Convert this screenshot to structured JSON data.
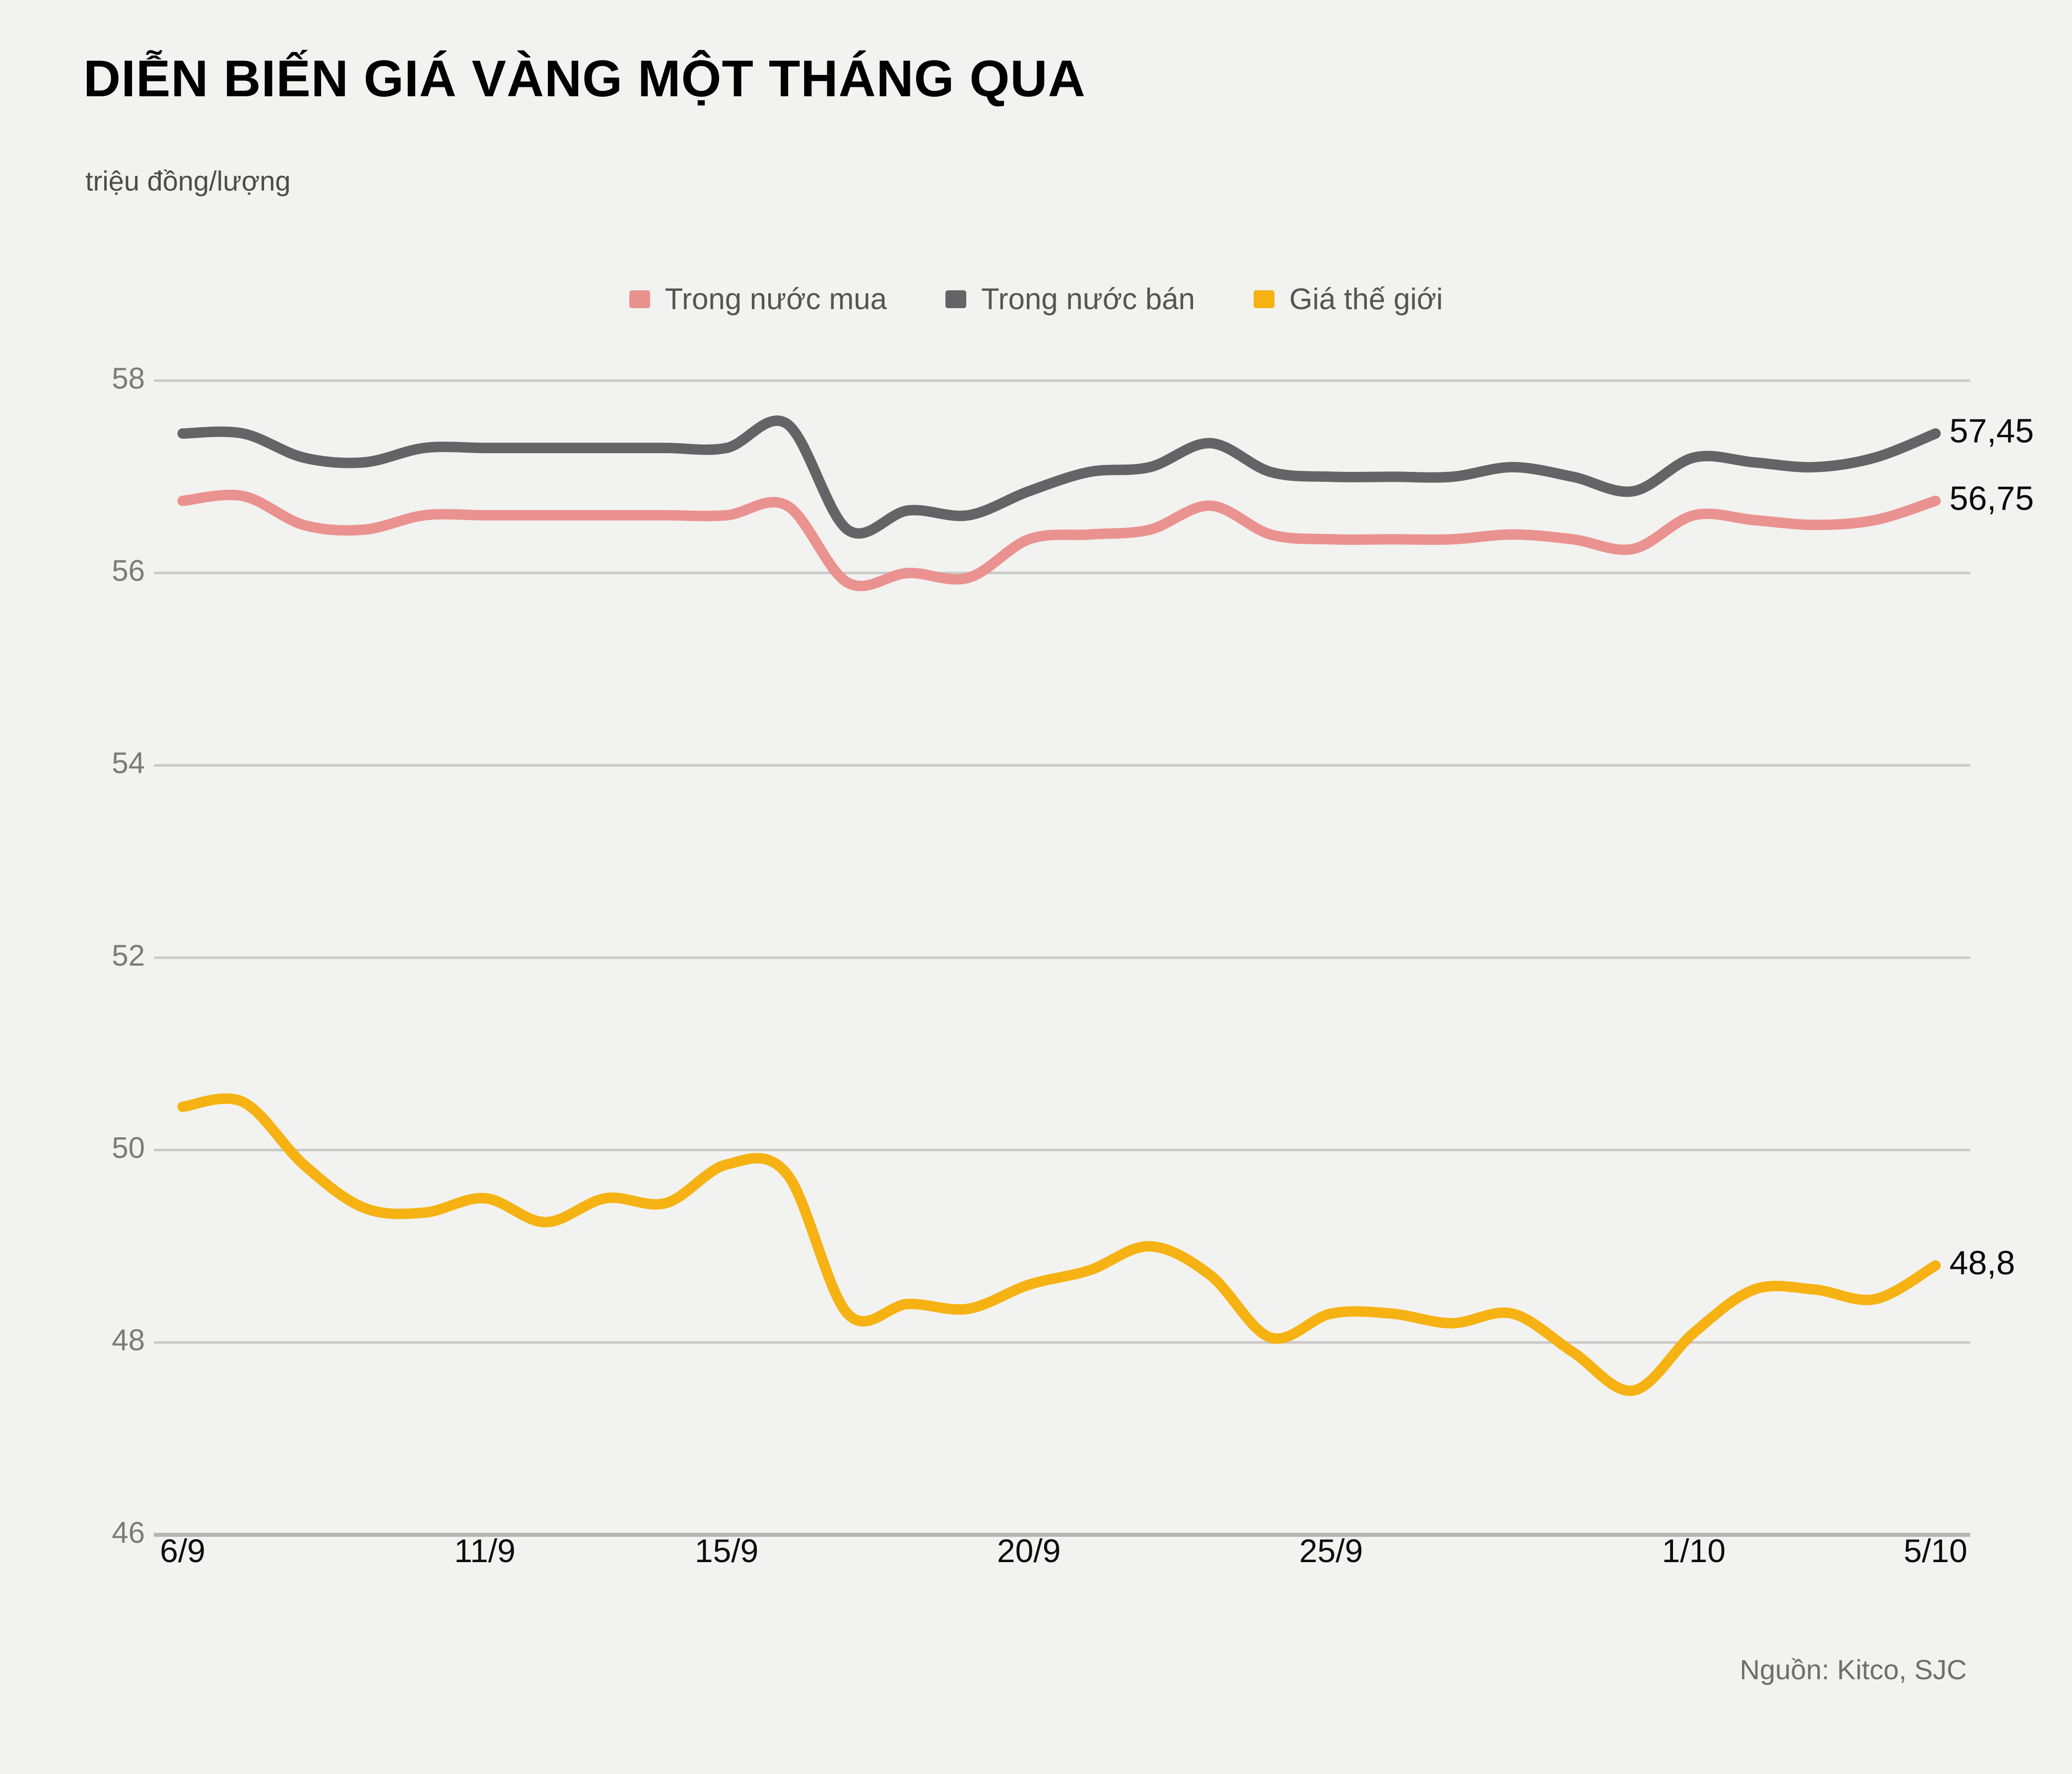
{
  "header": {
    "title": "DIỄN BIẾN GIÁ VÀNG MỘT THÁNG QUA",
    "subtitle": "triệu đồng/lượng"
  },
  "source": "Nguồn: Kitco, SJC",
  "colors": {
    "background": "#f2f2f0",
    "grid": "#cac9c7",
    "grid_bottom": "#b5b4b2",
    "y_tick_text": "#7b7b7b",
    "x_tick_text": "#0d0d0d",
    "end_label_text": "#0a0a0a"
  },
  "chart_data": {
    "type": "line",
    "title": "DIỄN BIẾN GIÁ VÀNG MỘT THÁNG QUA",
    "ylabel": "triệu đồng/lượng",
    "ylim": [
      46,
      58
    ],
    "yticks": [
      46,
      48,
      50,
      52,
      54,
      56,
      58
    ],
    "grid": "horizontal",
    "legend_position": "top-center",
    "x": [
      "6/9",
      "7/9",
      "8/9",
      "9/9",
      "10/9",
      "11/9",
      "12/9",
      "13/9",
      "14/9",
      "15/9",
      "16/9",
      "17/9",
      "18/9",
      "19/9",
      "20/9",
      "21/9",
      "22/9",
      "23/9",
      "24/9",
      "25/9",
      "26/9",
      "27/9",
      "28/9",
      "29/9",
      "30/9",
      "1/10",
      "2/10",
      "3/10",
      "4/10",
      "5/10"
    ],
    "xtick_labels": [
      "6/9",
      "11/9",
      "15/9",
      "20/9",
      "25/9",
      "1/10",
      "5/10"
    ],
    "series": [
      {
        "name": "Trong nước mua",
        "color": "#ea928f",
        "end_label": "56,75",
        "values": [
          56.75,
          56.8,
          56.5,
          56.45,
          56.6,
          56.6,
          56.6,
          56.6,
          56.6,
          56.6,
          56.7,
          55.9,
          56.0,
          55.95,
          56.35,
          56.4,
          56.45,
          56.7,
          56.4,
          56.35,
          56.35,
          56.35,
          56.4,
          56.35,
          56.25,
          56.6,
          56.55,
          56.5,
          56.55,
          56.75
        ]
      },
      {
        "name": "Trong nước bán",
        "color": "#646466",
        "end_label": "57,45",
        "values": [
          57.45,
          57.45,
          57.2,
          57.15,
          57.3,
          57.3,
          57.3,
          57.3,
          57.3,
          57.3,
          57.55,
          56.45,
          56.65,
          56.6,
          56.85,
          57.05,
          57.1,
          57.35,
          57.05,
          57.0,
          57.0,
          57.0,
          57.1,
          57.0,
          56.85,
          57.2,
          57.15,
          57.1,
          57.2,
          57.45
        ]
      },
      {
        "name": "Giá thế giới",
        "color": "#f5b212",
        "end_label": "48,8",
        "values": [
          50.45,
          50.5,
          49.85,
          49.4,
          49.35,
          49.5,
          49.25,
          49.5,
          49.45,
          49.85,
          49.75,
          48.3,
          48.4,
          48.35,
          48.6,
          48.75,
          49.0,
          48.7,
          48.05,
          48.3,
          48.3,
          48.2,
          48.3,
          47.9,
          47.5,
          48.1,
          48.55,
          48.55,
          48.45,
          48.8
        ]
      }
    ]
  }
}
